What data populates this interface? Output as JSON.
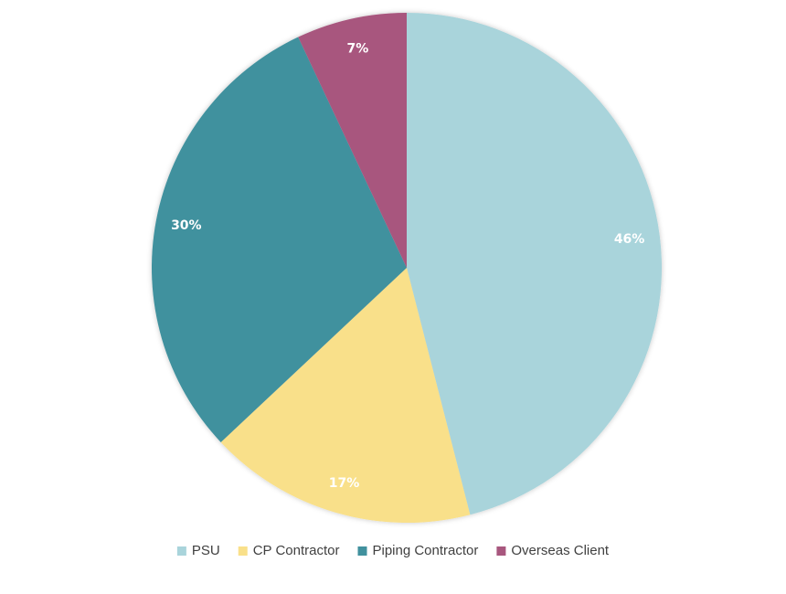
{
  "chart_data": {
    "type": "pie",
    "title": "",
    "categories": [
      "PSU",
      "CP Contractor",
      "Piping Contractor",
      "Overseas Client"
    ],
    "values": [
      46,
      17,
      30,
      7
    ],
    "data_labels": [
      "46%",
      "17%",
      "30%",
      "7%"
    ],
    "colors": [
      "#a9d4db",
      "#f9e08a",
      "#41919e",
      "#a8577e"
    ],
    "start_angle_deg": 0,
    "direction": "clockwise",
    "legend_position": "bottom"
  }
}
